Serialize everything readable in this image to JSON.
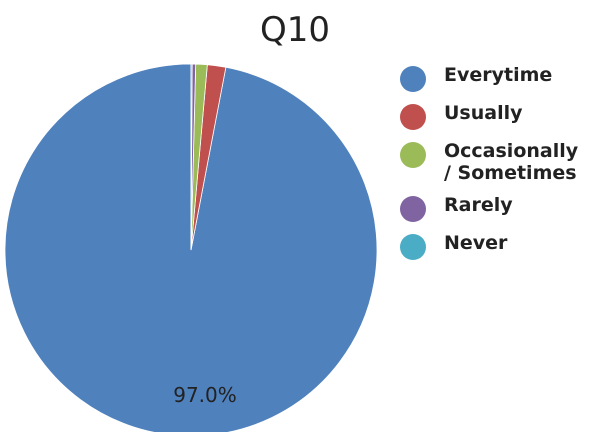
{
  "chart_data": {
    "type": "pie",
    "title": "Q10",
    "categories": [
      "Everytime",
      "Usually",
      "Occasionally / Sometimes",
      "Rarely",
      "Never"
    ],
    "values": [
      97.0,
      1.6,
      1.0,
      0.3,
      0.1
    ],
    "colors": [
      "#4f81bd",
      "#c0504d",
      "#9bbb59",
      "#8064a2",
      "#4bacc6"
    ],
    "data_labels": [
      "97.0%",
      "",
      "",
      "",
      ""
    ],
    "legend_position": "right"
  },
  "legend": {
    "items": [
      {
        "label": "Everytime",
        "color": "#4f81bd"
      },
      {
        "label": "Usually",
        "color": "#c0504d"
      },
      {
        "label": "Occasionally / Sometimes",
        "color": "#9bbb59"
      },
      {
        "label": "Rarely",
        "color": "#8064a2"
      },
      {
        "label": "Never",
        "color": "#4bacc6"
      }
    ]
  }
}
